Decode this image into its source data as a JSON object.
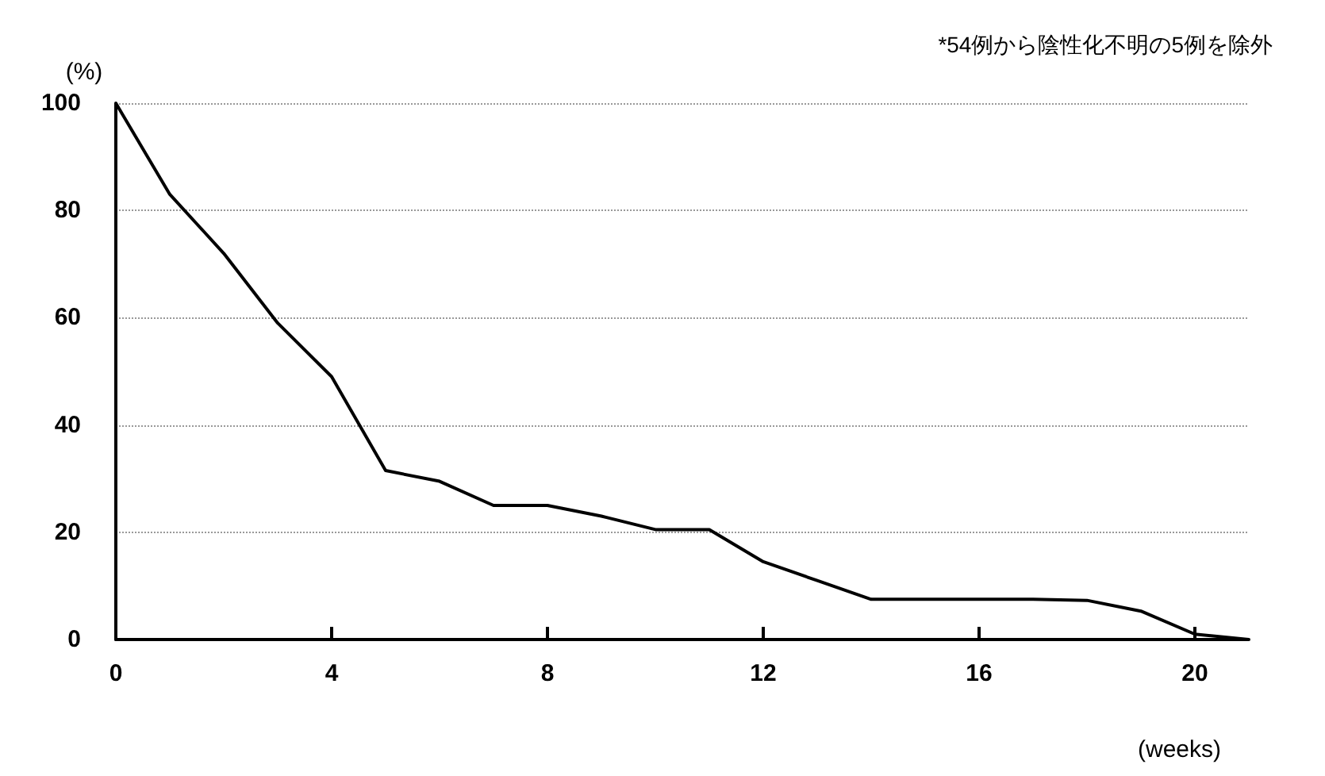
{
  "chart_data": {
    "type": "line",
    "xlabel": "(weeks)",
    "ylabel": "(%)",
    "annotations": [
      "*54例から陰性化不明の5例を除外"
    ],
    "x": [
      0,
      1,
      2,
      3,
      4,
      5,
      6,
      7,
      8,
      9,
      10,
      11,
      12,
      13,
      14,
      15,
      16,
      17,
      18,
      19,
      20,
      21
    ],
    "values": [
      100,
      83,
      72,
      59,
      49,
      31.5,
      29.5,
      25,
      25,
      23,
      20.5,
      20.5,
      14.5,
      11,
      7.5,
      7.5,
      7.5,
      7.5,
      7.3,
      5.3,
      1,
      0
    ],
    "color": "#000000",
    "xlim": [
      0,
      21
    ],
    "xticks": [
      0,
      4,
      8,
      12,
      16,
      20
    ],
    "ylim": [
      0,
      100
    ],
    "yticks": [
      0,
      20,
      40,
      60,
      80,
      100
    ],
    "grid": "y",
    "marker": "none",
    "line_style": "solid"
  }
}
